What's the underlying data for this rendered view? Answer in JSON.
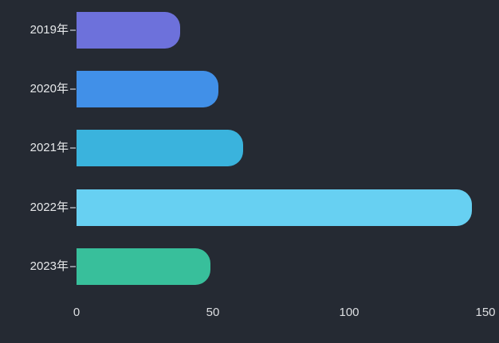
{
  "chart_data": {
    "type": "bar",
    "orientation": "horizontal",
    "title": "",
    "xlabel": "",
    "ylabel": "",
    "categories": [
      "2019年",
      "2020年",
      "2021年",
      "2022年",
      "2023年"
    ],
    "values": [
      38,
      52,
      61,
      145,
      49
    ],
    "bar_colors": [
      "#6D71DB",
      "#4190E8",
      "#3AB3DD",
      "#67D0F2",
      "#38BF9B"
    ],
    "x_ticks": [
      0,
      50,
      100,
      150
    ],
    "xlim": [
      0,
      150
    ],
    "grid": false,
    "legend": null,
    "background_color": "#252A33",
    "label_color": "#E6E8EA",
    "tick_label_color": "#DDDFE2",
    "tick_mark_color": "#8A8F99"
  }
}
